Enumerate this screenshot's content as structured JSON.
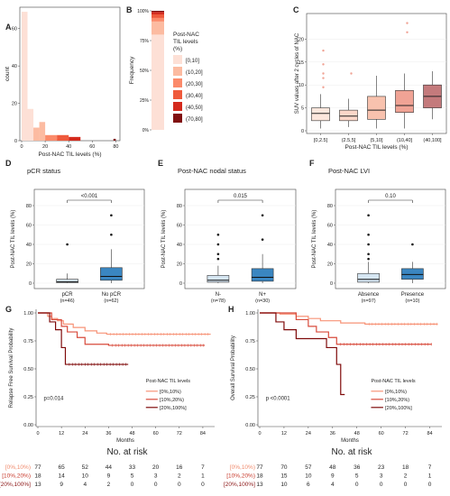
{
  "colors": {
    "til_bins": [
      "#fde0d6",
      "#fcbba1",
      "#fb8a6a",
      "#ef5a3c",
      "#d42a1d",
      "#800f10"
    ],
    "pcr_box_light": "#d6e6f3",
    "box_dark": "#3a86c1",
    "km": [
      "#f79377",
      "#d84a3b",
      "#7f0a0a"
    ],
    "risk_text": [
      "#f08a6c",
      "#c8392b",
      "#8b1515"
    ]
  },
  "chart_data": [
    {
      "panel": "A",
      "type": "histogram",
      "xlabel": "Post-NAC TIL levels (%)",
      "ylabel": "count",
      "xlim": [
        0,
        82
      ],
      "ylim": [
        0,
        70
      ],
      "xticks": [
        0,
        20,
        40,
        60,
        80
      ],
      "yticks": [
        0,
        20,
        40,
        60
      ],
      "bins": [
        {
          "x0": 0,
          "x1": 5,
          "count": 69,
          "color_index": 0
        },
        {
          "x0": 5,
          "x1": 10,
          "count": 17,
          "color_index": 0
        },
        {
          "x0": 10,
          "x1": 15,
          "count": 7,
          "color_index": 1
        },
        {
          "x0": 15,
          "x1": 20,
          "count": 10,
          "color_index": 1
        },
        {
          "x0": 20,
          "x1": 30,
          "count": 3,
          "color_index": 2
        },
        {
          "x0": 30,
          "x1": 40,
          "count": 3,
          "color_index": 3
        },
        {
          "x0": 40,
          "x1": 50,
          "count": 2,
          "color_index": 4
        },
        {
          "x0": 78,
          "x1": 80,
          "count": 1,
          "color_index": 5
        }
      ]
    },
    {
      "panel": "B",
      "type": "bar",
      "stacked": true,
      "ylabel": "Frequency",
      "yticks": [
        "0%",
        "25%",
        "50%",
        "75%",
        "100%"
      ],
      "segments": [
        {
          "level": "(0,10]",
          "value": 0.8,
          "color_index": 0
        },
        {
          "level": "(10,20]",
          "value": 0.11,
          "color_index": 1
        },
        {
          "level": "(20,30]",
          "value": 0.03,
          "color_index": 2
        },
        {
          "level": "(30,40]",
          "value": 0.03,
          "color_index": 3
        },
        {
          "level": "(40,50]",
          "value": 0.02,
          "color_index": 4
        },
        {
          "level": "(70,80]",
          "value": 0.01,
          "color_index": 5
        }
      ],
      "legend_title": [
        "Post-NAC",
        "TIL levels",
        "(%)"
      ],
      "legend": [
        "[0,10]",
        "(10,20]",
        "(20,30]",
        "(30,40]",
        "(40,50]",
        "(70,80]"
      ]
    },
    {
      "panel": "C",
      "type": "box",
      "ylabel": "SUV values after 2 cycles of NAC",
      "xlabel": "Post-NAC TIL levels (%)",
      "ylim": [
        0,
        25
      ],
      "yticks": [
        0,
        5,
        10,
        15,
        20
      ],
      "groups": [
        {
          "label": "[0,2.5]",
          "min": 0.5,
          "q1": 2.2,
          "median": 3.8,
          "q3": 5.0,
          "max": 8.0,
          "outliers": [
            9.5,
            11.5,
            12.5,
            14.5,
            17.5
          ],
          "color": "#fde7dd"
        },
        {
          "label": "(2.5,5]",
          "min": 0.8,
          "q1": 2.2,
          "median": 3.2,
          "q3": 4.5,
          "max": 7.0,
          "outliers": [
            12.5
          ],
          "color": "#fbd7c9"
        },
        {
          "label": "(5,10]",
          "min": 0.5,
          "q1": 2.5,
          "median": 4.5,
          "q3": 7.5,
          "max": 12.0,
          "outliers": [],
          "color": "#f8c2ae"
        },
        {
          "label": "(10,40]",
          "min": 0.5,
          "q1": 4.0,
          "median": 5.5,
          "q3": 8.8,
          "max": 12.5,
          "outliers": [
            21.5,
            23.5
          ],
          "color": "#f0a395"
        },
        {
          "label": "(40,100]",
          "min": 2.5,
          "q1": 5.0,
          "median": 7.5,
          "q3": 10.0,
          "max": 13.0,
          "outliers": [],
          "color": "#c47a7c"
        }
      ]
    },
    {
      "panel": "D",
      "type": "box",
      "title": "pCR status",
      "ylabel": "Post-NAC TIL levels (%)",
      "ylim": [
        0,
        80
      ],
      "yticks": [
        0,
        20,
        40,
        60,
        80
      ],
      "pvalue": "<0.001",
      "groups": [
        {
          "label": "pCR",
          "n": "(n=46)",
          "min": 0,
          "q1": 0.5,
          "median": 1.5,
          "q3": 4,
          "max": 10,
          "outliers": [
            40
          ],
          "color_key": "pcr_box_light"
        },
        {
          "label": "No pCR",
          "n": "(n=62)",
          "min": 0,
          "q1": 3,
          "median": 7,
          "q3": 16,
          "max": 35,
          "outliers": [
            50,
            70
          ],
          "color_key": "box_dark"
        }
      ]
    },
    {
      "panel": "E",
      "type": "box",
      "title": "Post-NAC nodal status",
      "ylabel": "Post-NAC TIL levels (%)",
      "ylim": [
        0,
        80
      ],
      "yticks": [
        0,
        20,
        40,
        60,
        80
      ],
      "pvalue": "0.015",
      "groups": [
        {
          "label": "N-",
          "n": "(n=78)",
          "min": 0,
          "q1": 1,
          "median": 3,
          "q3": 8,
          "max": 18,
          "outliers": [
            25,
            30,
            40,
            50
          ],
          "color_key": "pcr_box_light"
        },
        {
          "label": "N+",
          "n": "(n=30)",
          "min": 0,
          "q1": 2,
          "median": 6,
          "q3": 15,
          "max": 30,
          "outliers": [
            45,
            70
          ],
          "color_key": "box_dark"
        }
      ]
    },
    {
      "panel": "F",
      "type": "box",
      "title": "Post-NAC LVI",
      "ylabel": "Post-NAC TIL levels (%)",
      "ylim": [
        0,
        80
      ],
      "yticks": [
        0,
        20,
        40,
        60,
        80
      ],
      "pvalue": "0.10",
      "groups": [
        {
          "label": "Absence",
          "n": "(n=97)",
          "min": 0,
          "q1": 1,
          "median": 4,
          "q3": 10,
          "max": 22,
          "outliers": [
            25,
            30,
            40,
            50,
            70
          ],
          "color_key": "pcr_box_light"
        },
        {
          "label": "Presence",
          "n": "(n=10)",
          "min": 0,
          "q1": 4,
          "median": 9,
          "q3": 15,
          "max": 22,
          "outliers": [
            40
          ],
          "color_key": "box_dark"
        }
      ]
    },
    {
      "panel": "G",
      "type": "line",
      "subtype": "kaplan-meier",
      "ylabel": "Relapse Free Survival Probability",
      "xlabel": "Months",
      "xlim": [
        0,
        90
      ],
      "ylim": [
        0,
        1
      ],
      "xticks": [
        0,
        12,
        24,
        36,
        48,
        60,
        72,
        84
      ],
      "yticks": [
        "0.00",
        "0.25",
        "0.50",
        "0.75",
        "1.00"
      ],
      "pvalue_label": "p=0.014",
      "legend_title": "Post-NAC TIL levels",
      "series": [
        {
          "name": "[0%,10%)",
          "color_index": 0,
          "steps": [
            [
              0,
              1
            ],
            [
              5,
              0.97
            ],
            [
              7,
              0.95
            ],
            [
              10,
              0.93
            ],
            [
              13,
              0.9
            ],
            [
              18,
              0.87
            ],
            [
              24,
              0.84
            ],
            [
              30,
              0.82
            ],
            [
              35,
              0.81
            ],
            [
              88,
              0.81
            ]
          ]
        },
        {
          "name": "[10%,20%)",
          "color_index": 1,
          "steps": [
            [
              0,
              1
            ],
            [
              7,
              0.94
            ],
            [
              12,
              0.88
            ],
            [
              15,
              0.83
            ],
            [
              20,
              0.78
            ],
            [
              24,
              0.72
            ],
            [
              36,
              0.71
            ],
            [
              85,
              0.71
            ]
          ]
        },
        {
          "name": "[20%,100%]",
          "color_index": 2,
          "steps": [
            [
              0,
              1
            ],
            [
              6,
              0.92
            ],
            [
              9,
              0.85
            ],
            [
              12,
              0.69
            ],
            [
              14,
              0.54
            ],
            [
              46,
              0.54
            ]
          ]
        }
      ],
      "risk_title": "No. at risk",
      "risk_table": [
        {
          "label": "[0%,10%)",
          "values": [
            "77",
            "65",
            "52",
            "44",
            "33",
            "20",
            "16",
            "7"
          ]
        },
        {
          "label": "[10%,20%)",
          "values": [
            "18",
            "14",
            "10",
            "9",
            "5",
            "3",
            "2",
            "1"
          ]
        },
        {
          "label": "[20%,100%]",
          "values": [
            "13",
            "9",
            "4",
            "2",
            "0",
            "0",
            "0",
            "0"
          ]
        }
      ]
    },
    {
      "panel": "H",
      "type": "line",
      "subtype": "kaplan-meier",
      "ylabel": "Overall Survival Probability",
      "xlabel": "Months",
      "xlim": [
        0,
        90
      ],
      "ylim": [
        0,
        1
      ],
      "xticks": [
        0,
        12,
        24,
        36,
        48,
        60,
        72,
        84
      ],
      "yticks": [
        "0.00",
        "0.25",
        "0.50",
        "0.75",
        "1.00"
      ],
      "pvalue_label": "p <0.0001",
      "legend_title": "Post-NAC TIL levels",
      "series": [
        {
          "name": "[0%,10%)",
          "color_index": 0,
          "steps": [
            [
              0,
              1
            ],
            [
              10,
              0.99
            ],
            [
              18,
              0.97
            ],
            [
              24,
              0.95
            ],
            [
              30,
              0.93
            ],
            [
              40,
              0.91
            ],
            [
              52,
              0.9
            ],
            [
              88,
              0.9
            ]
          ]
        },
        {
          "name": "[10%,20%)",
          "color_index": 1,
          "steps": [
            [
              0,
              1
            ],
            [
              18,
              0.94
            ],
            [
              24,
              0.88
            ],
            [
              28,
              0.83
            ],
            [
              34,
              0.78
            ],
            [
              38,
              0.72
            ],
            [
              85,
              0.72
            ]
          ]
        },
        {
          "name": "[20%,100%]",
          "color_index": 2,
          "steps": [
            [
              0,
              1
            ],
            [
              8,
              0.92
            ],
            [
              12,
              0.85
            ],
            [
              18,
              0.77
            ],
            [
              24,
              0.77
            ],
            [
              33,
              0.69
            ],
            [
              38,
              0.54
            ],
            [
              40,
              0.27
            ],
            [
              42,
              0.27
            ]
          ]
        }
      ],
      "risk_title": "No. at risk",
      "risk_table": [
        {
          "label": "[0%,10%)",
          "values": [
            "77",
            "70",
            "57",
            "48",
            "36",
            "23",
            "18",
            "7"
          ]
        },
        {
          "label": "[10%,20%)",
          "values": [
            "18",
            "15",
            "10",
            "9",
            "5",
            "3",
            "2",
            "1"
          ]
        },
        {
          "label": "[20%,100%]",
          "values": [
            "13",
            "10",
            "6",
            "4",
            "0",
            "0",
            "0",
            "0"
          ]
        }
      ]
    }
  ]
}
